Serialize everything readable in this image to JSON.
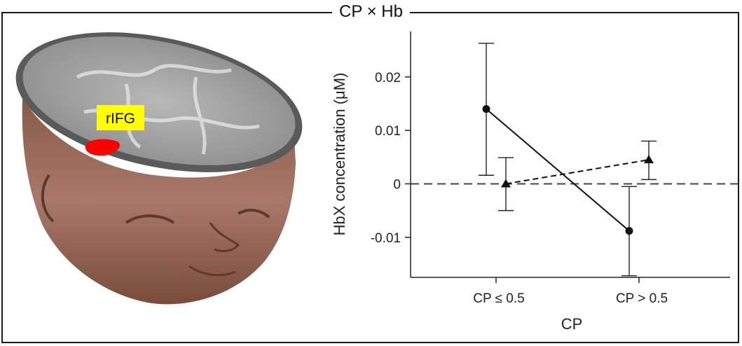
{
  "panel_title": "CP × Hb",
  "brain_figure": {
    "roi_label": "rIFG",
    "roi_label_bg": "#ffff00",
    "roi_color": "#ff0000",
    "skin_color": "#a0705e",
    "slice_color": "#9a9a9a"
  },
  "chart_data": {
    "type": "line",
    "title": "",
    "xlabel": "CP",
    "ylabel": "HbX concentration (μM)",
    "categories": [
      "CP ≤ 0.5",
      "CP > 0.5"
    ],
    "ylim": [
      -0.0175,
      0.0285
    ],
    "yticks": [
      -0.01,
      0,
      0.01,
      0.02
    ],
    "ytick_labels": [
      "-0.01",
      "0",
      "0.01",
      "0.02"
    ],
    "reference_line": 0,
    "grid": false,
    "series": [
      {
        "marker": "circle",
        "line": "solid",
        "values": [
          0.014,
          -0.0088
        ],
        "err_low": [
          0.0016,
          -0.0172
        ],
        "err_high": [
          0.0263,
          -0.0005
        ]
      },
      {
        "marker": "triangle",
        "line": "dashed",
        "values": [
          0.0,
          0.0045
        ],
        "err_low": [
          -0.005,
          0.0008
        ],
        "err_high": [
          0.0049,
          0.008
        ]
      }
    ]
  }
}
